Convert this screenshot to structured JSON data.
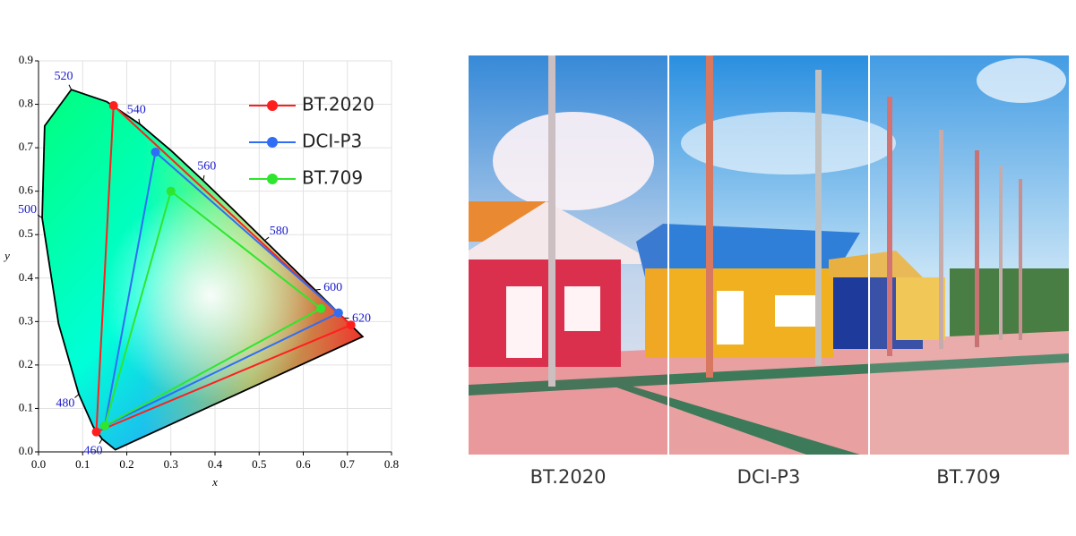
{
  "chart_data": {
    "type": "line",
    "xlabel": "x",
    "ylabel": "y",
    "xlim": [
      0,
      0.8
    ],
    "ylim": [
      0,
      0.9
    ],
    "xticks": [
      {
        "value": 0,
        "label": "0.0"
      },
      0.1,
      0.2,
      0.3,
      0.4,
      0.5,
      0.6,
      0.7,
      0.8
    ],
    "yticks": [
      {
        "value": 0,
        "label": "0.0"
      },
      0.1,
      0.2,
      0.3,
      0.4,
      0.5,
      0.6,
      0.7,
      0.8,
      0.9
    ],
    "grid": true,
    "legend": "upper right",
    "spectral_locus": {
      "x": [
        0.1741,
        0.144,
        0.1241,
        0.0913,
        0.0454,
        0.0082,
        0.0139,
        0.0743,
        0.1547,
        0.2296,
        0.3016,
        0.3731,
        0.4441,
        0.5125,
        0.5752,
        0.627,
        0.6915,
        0.7347
      ],
      "y": [
        0.005,
        0.0297,
        0.0578,
        0.1327,
        0.295,
        0.5384,
        0.7502,
        0.8338,
        0.8059,
        0.7543,
        0.6923,
        0.6245,
        0.5547,
        0.4866,
        0.4242,
        0.3725,
        0.3083,
        0.2653
      ]
    },
    "wavelength_labels": [
      {
        "label": "460",
        "x": 0.144,
        "y": 0.0297
      },
      {
        "label": "480",
        "x": 0.0913,
        "y": 0.1327
      },
      {
        "label": "500",
        "x": 0.0082,
        "y": 0.5384
      },
      {
        "label": "520",
        "x": 0.0743,
        "y": 0.8338
      },
      {
        "label": "540",
        "x": 0.2296,
        "y": 0.7543
      },
      {
        "label": "560",
        "x": 0.3731,
        "y": 0.6245
      },
      {
        "label": "580",
        "x": 0.5125,
        "y": 0.4866
      },
      {
        "label": "600",
        "x": 0.627,
        "y": 0.3725
      },
      {
        "label": "620",
        "x": 0.6915,
        "y": 0.3083
      }
    ],
    "series": [
      {
        "name": "BT.2020",
        "color": "#ff1e1e",
        "x": [
          0.708,
          0.17,
          0.131
        ],
        "y": [
          0.292,
          0.797,
          0.046
        ]
      },
      {
        "name": "DCI-P3",
        "color": "#2f6df5",
        "x": [
          0.68,
          0.265,
          0.15
        ],
        "y": [
          0.32,
          0.69,
          0.06
        ]
      },
      {
        "name": "BT.709",
        "color": "#2ee62e",
        "x": [
          0.64,
          0.3,
          0.15
        ],
        "y": [
          0.33,
          0.6,
          0.06
        ]
      }
    ]
  },
  "photo": {
    "captions": [
      "BT.2020",
      "DCI-P3",
      "BT.709"
    ]
  }
}
